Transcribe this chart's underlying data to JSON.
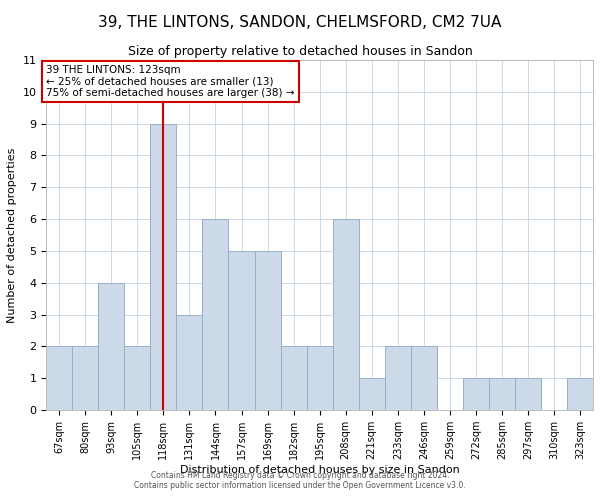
{
  "title": "39, THE LINTONS, SANDON, CHELMSFORD, CM2 7UA",
  "subtitle": "Size of property relative to detached houses in Sandon",
  "xlabel": "Distribution of detached houses by size in Sandon",
  "ylabel": "Number of detached properties",
  "categories": [
    "67sqm",
    "80sqm",
    "93sqm",
    "105sqm",
    "118sqm",
    "131sqm",
    "144sqm",
    "157sqm",
    "169sqm",
    "182sqm",
    "195sqm",
    "208sqm",
    "221sqm",
    "233sqm",
    "246sqm",
    "259sqm",
    "272sqm",
    "285sqm",
    "297sqm",
    "310sqm",
    "323sqm"
  ],
  "values": [
    2,
    2,
    4,
    2,
    9,
    3,
    6,
    5,
    5,
    2,
    2,
    6,
    1,
    2,
    2,
    0,
    1,
    1,
    1,
    0,
    1
  ],
  "bar_color": "#ccd9e8",
  "bar_edgecolor": "#9ab0c8",
  "property_line_x": 4.5,
  "annotation_line1": "39 THE LINTONS: 123sqm",
  "annotation_line2": "← 25% of detached houses are smaller (13)",
  "annotation_line3": "75% of semi-detached houses are larger (38) →",
  "annotation_box_facecolor": "#ffffff",
  "annotation_box_edgecolor": "#cc0000",
  "ylim": [
    0,
    11
  ],
  "yticks": [
    0,
    1,
    2,
    3,
    4,
    5,
    6,
    7,
    8,
    9,
    10,
    11
  ],
  "footer_line1": "Contains HM Land Registry data © Crown copyright and database right 2024.",
  "footer_line2": "Contains public sector information licensed under the Open Government Licence v3.0.",
  "title_fontsize": 11,
  "subtitle_fontsize": 9,
  "axis_label_fontsize": 8,
  "tick_fontsize": 7,
  "background_color": "#ffffff",
  "grid_color": "#c5d3e0",
  "red_line_color": "#cc0000",
  "fig_width": 6.0,
  "fig_height": 5.0,
  "fig_dpi": 100
}
